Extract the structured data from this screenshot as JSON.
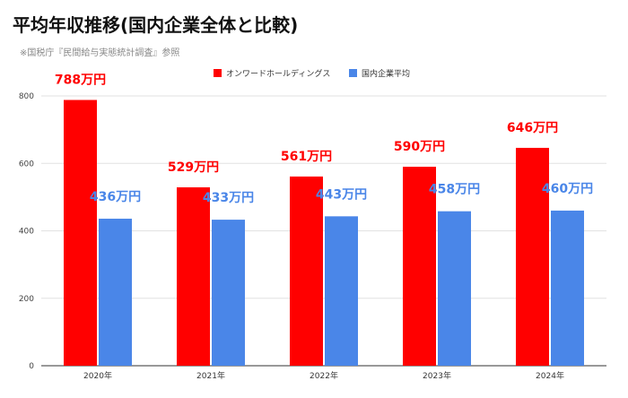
{
  "title": "平均年収推移(国内企業全体と比較)",
  "subtitle": "※国税庁『民間給与実態統計調査』参照",
  "chart_data": {
    "type": "bar",
    "categories": [
      "2020年",
      "2021年",
      "2022年",
      "2023年",
      "2024年"
    ],
    "series": [
      {
        "name": "オンワードホールディングス",
        "color": "#ff0000",
        "values": [
          788,
          529,
          561,
          590,
          646
        ],
        "labels": [
          "788万円",
          "529万円",
          "561万円",
          "590万円",
          "646万円"
        ]
      },
      {
        "name": "国内企業平均",
        "color": "#4a86e8",
        "values": [
          436,
          433,
          443,
          458,
          460
        ],
        "labels": [
          "436万円",
          "433万円",
          "443万円",
          "458万円",
          "460万円"
        ]
      }
    ],
    "ylim": [
      0,
      800
    ],
    "yticks": [
      0,
      200,
      400,
      600,
      800
    ],
    "grid": true,
    "legend_position": "top"
  }
}
